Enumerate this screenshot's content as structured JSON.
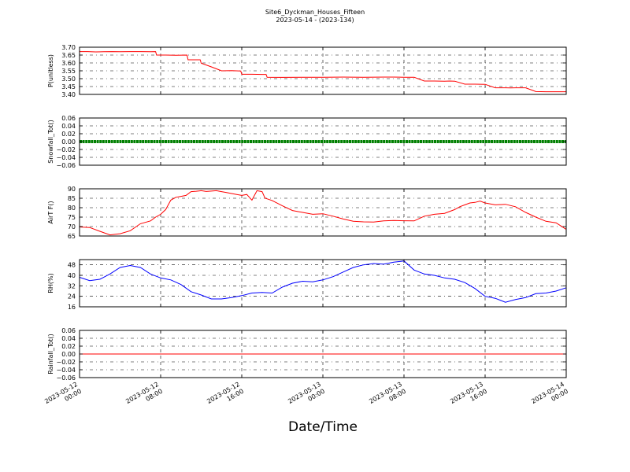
{
  "chart_data": {
    "type": "line",
    "title": "Site6_Dyckman_Houses_Fifteen",
    "subtitle": "2023-05-14 - (2023-134)",
    "xlabel": "Date/Time",
    "x_ticks": [
      "2023-05-12\n00:00",
      "2023-05-12\n08:00",
      "2023-05-12\n16:00",
      "2023-05-13\n00:00",
      "2023-05-13\n08:00",
      "2023-05-13\n16:00",
      "2023-05-14\n00:00"
    ],
    "x_range_hours": [
      0,
      48
    ],
    "grid": true,
    "panels": [
      {
        "ylabel": "P(unitless)",
        "ylim": [
          3.4,
          3.7
        ],
        "yticks": [
          3.4,
          3.45,
          3.5,
          3.55,
          3.6,
          3.65,
          3.7
        ],
        "ytick_labels": [
          "3.40",
          "3.45",
          "3.50",
          "3.55",
          "3.60",
          "3.65",
          "3.70"
        ],
        "series": [
          {
            "color": "#ff0000",
            "x": [
              0,
              0.8,
              1.6,
              2.4,
              3.2,
              4,
              5,
              6,
              7,
              7.5,
              7.6,
              8.5,
              9.5,
              10.6,
              10.7,
              11.9,
              12,
              13,
              14,
              15,
              15.9,
              16,
              17,
              18,
              18.4,
              18.5,
              20,
              22,
              24,
              26,
              28,
              30,
              31,
              32,
              33,
              34,
              35,
              36,
              36.5,
              37,
              38,
              39,
              40,
              41,
              41.5,
              42,
              42.5,
              43,
              44,
              45,
              46,
              47,
              48
            ],
            "y": [
              3.672,
              3.672,
              3.67,
              3.671,
              3.672,
              3.671,
              3.672,
              3.672,
              3.671,
              3.672,
              3.65,
              3.65,
              3.649,
              3.65,
              3.62,
              3.62,
              3.598,
              3.575,
              3.55,
              3.551,
              3.549,
              3.528,
              3.528,
              3.527,
              3.527,
              3.509,
              3.508,
              3.509,
              3.509,
              3.51,
              3.509,
              3.51,
              3.51,
              3.509,
              3.509,
              3.485,
              3.485,
              3.484,
              3.485,
              3.484,
              3.465,
              3.465,
              3.464,
              3.442,
              3.442,
              3.442,
              3.441,
              3.442,
              3.442,
              3.418,
              3.417,
              3.417,
              3.417
            ]
          }
        ]
      },
      {
        "ylabel": "Snowfall_Tot()",
        "ylim": [
          -0.06,
          0.06
        ],
        "yticks": [
          -0.06,
          -0.04,
          -0.02,
          0.0,
          0.02,
          0.04,
          0.06
        ],
        "ytick_labels": [
          "−0.06",
          "−0.04",
          "−0.02",
          "0.00",
          "0.02",
          "0.04",
          "0.06"
        ],
        "series": [
          {
            "color": "#008000",
            "style": "markers",
            "x": [
              0,
              48
            ],
            "y": [
              0,
              0
            ]
          }
        ]
      },
      {
        "ylabel": "AirT F()",
        "ylim": [
          65,
          90
        ],
        "yticks": [
          65,
          70,
          75,
          80,
          85,
          90
        ],
        "ytick_labels": [
          "65",
          "70",
          "75",
          "80",
          "85",
          "90"
        ],
        "series": [
          {
            "color": "#ff0000",
            "x": [
              0,
              1,
              2,
              3,
              4,
              5,
              6,
              7,
              7.5,
              8,
              8.5,
              9,
              9.5,
              10,
              10.5,
              11,
              11.5,
              12,
              12.5,
              13,
              13.5,
              14,
              14.5,
              15,
              15.5,
              16,
              16.5,
              17,
              17.5,
              18,
              18.3,
              18.6,
              19,
              20,
              21,
              22,
              23,
              24,
              25,
              26,
              27,
              28,
              29,
              30,
              31,
              32,
              33,
              34,
              35,
              36,
              37,
              37.5,
              38,
              38.5,
              39,
              39.5,
              40,
              41,
              42,
              43,
              44,
              45,
              46,
              47,
              48
            ],
            "y": [
              69.8,
              69.5,
              67.5,
              65.6,
              66.2,
              67.8,
              71.5,
              73.0,
              75.0,
              76.5,
              79.0,
              84.0,
              85.5,
              86.0,
              86.5,
              88.5,
              88.7,
              89.0,
              88.6,
              88.8,
              89.0,
              88.5,
              88.0,
              87.5,
              87.0,
              86.5,
              87.0,
              84.0,
              89.0,
              88.5,
              85.0,
              84.5,
              83.8,
              81.0,
              78.5,
              77.5,
              76.5,
              76.8,
              75.5,
              74.0,
              72.8,
              72.5,
              72.4,
              73.0,
              73.2,
              73.1,
              73.0,
              75.5,
              76.5,
              77.0,
              79.0,
              80.5,
              81.5,
              82.5,
              82.8,
              83.5,
              82.5,
              81.5,
              81.8,
              80.5,
              77.5,
              75.0,
              72.8,
              72.0,
              68.5
            ]
          }
        ]
      },
      {
        "ylabel": "RH(%)",
        "ylim": [
          16,
          52
        ],
        "yticks": [
          16,
          24,
          32,
          40,
          48
        ],
        "ytick_labels": [
          "16",
          "24",
          "32",
          "40",
          "48"
        ],
        "series": [
          {
            "color": "#0000ff",
            "x": [
              0,
              1,
              2,
              3,
              4,
              5,
              6,
              7,
              8,
              9,
              10,
              11,
              12,
              13,
              14,
              15,
              16,
              17,
              18,
              19,
              20,
              21,
              22,
              23,
              24,
              25,
              26,
              27,
              28,
              29,
              30,
              31,
              32,
              33,
              34,
              35,
              36,
              37,
              38,
              39,
              40,
              41,
              42,
              43,
              44,
              45,
              46,
              47,
              48
            ],
            "y": [
              38.5,
              36.0,
              37.0,
              41.0,
              46.0,
              47.5,
              46.0,
              41.0,
              38.0,
              36.5,
              33.0,
              27.5,
              25.0,
              22.0,
              22.0,
              23.0,
              24.5,
              26.5,
              27.0,
              26.5,
              31.0,
              34.0,
              35.5,
              35.0,
              36.5,
              39.0,
              42.5,
              46.0,
              48.0,
              49.0,
              48.5,
              50.0,
              51.0,
              44.0,
              41.0,
              40.0,
              38.0,
              37.0,
              34.5,
              30.0,
              24.0,
              22.5,
              19.5,
              21.5,
              23.0,
              26.0,
              26.5,
              28.0,
              30.5
            ]
          }
        ]
      },
      {
        "ylabel": "Rainfall_Tot()",
        "ylim": [
          -0.06,
          0.06
        ],
        "yticks": [
          -0.06,
          -0.04,
          -0.02,
          0.0,
          0.02,
          0.04,
          0.06
        ],
        "ytick_labels": [
          "−0.06",
          "−0.04",
          "−0.02",
          "0.00",
          "0.02",
          "0.04",
          "0.06"
        ],
        "series": [
          {
            "color": "#ff0000",
            "x": [
              0,
              48
            ],
            "y": [
              0,
              0
            ]
          }
        ]
      }
    ]
  }
}
